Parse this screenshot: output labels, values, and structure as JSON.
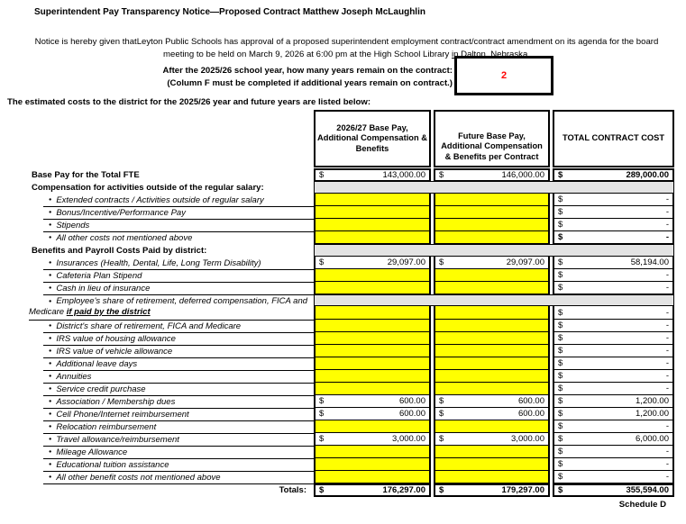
{
  "title": "Superintendent Pay Transparency Notice—Proposed Contract Matthew Joseph McLaughlin",
  "notice": {
    "line1": "Notice is hereby given thatLeyton Public Schools has approval of a proposed superintendent employment contract/contract amendment on its agenda for the  board",
    "line2_prefix": "meeting to be held on March 9, 2026 at 6:00 pm at the High School Library ",
    "line2_underlined": "in Dalton, Nebraska."
  },
  "question": {
    "line1": "After the 2025/26 school year, how many years remain on the contract:",
    "line2": "(Column F must be completed if additional years remain on contract.)",
    "answer": "2",
    "answer_color": "#ff0000"
  },
  "intro": "The estimated costs to the district for the 2025/26 year and future years are listed below:",
  "table": {
    "headers": [
      "2026/27 Base Pay, Additional Compensation & Benefits",
      "Future Base Pay, Additional Compensation & Benefits per Contract",
      "TOTAL CONTRACT COST"
    ],
    "rows": [
      {
        "label": "Base Pay for the Total FTE",
        "style": "section",
        "first": true,
        "b": "143,000.00",
        "c": "146,000.00",
        "d": "289,000.00",
        "d_bold": true
      },
      {
        "label": "Compensation for activities outside of the regular salary:",
        "style": "section",
        "span": "gray"
      },
      {
        "label": "Extended contracts / Activities outside of regular salary",
        "style": "bullet",
        "b": "yellow",
        "c": "yellow",
        "d": "-"
      },
      {
        "label": "Bonus/Incentive/Performance Pay",
        "style": "bullet",
        "b": "yellow",
        "c": "yellow",
        "d": "-"
      },
      {
        "label": "Stipends",
        "style": "bullet",
        "b": "yellow",
        "c": "yellow",
        "d": "-"
      },
      {
        "label": "All other costs not mentioned above",
        "style": "bullet",
        "ul": false,
        "b": "yellow",
        "c": "yellow",
        "d": "-",
        "d_bold": true
      },
      {
        "label": "Benefits and Payroll Costs Paid by district:",
        "style": "section",
        "span": "gray"
      },
      {
        "label": "Insurances (Health, Dental, Life, Long Term Disability)",
        "style": "bullet",
        "b": "29,097.00",
        "c": "29,097.00",
        "d": "58,194.00"
      },
      {
        "label": "Cafeteria Plan Stipend",
        "style": "bullet",
        "b": "yellow",
        "c": "yellow",
        "d": "-"
      },
      {
        "label": "Cash in lieu of insurance",
        "style": "bullet",
        "b": "yellow",
        "c": "yellow",
        "d": "-"
      },
      {
        "style": "two_line",
        "label_line1": "Employee's share of retirement, deferred compensation, FICA and",
        "label_line2_prefix": "Medicare ",
        "label_line2_emphasis": "if paid by the district",
        "b": "yellow",
        "c": "yellow",
        "d": "-"
      },
      {
        "label": "District's share of retirement, FICA and Medicare",
        "style": "bullet",
        "b": "yellow",
        "c": "yellow",
        "d": "-"
      },
      {
        "label": "IRS value of housing allowance",
        "style": "bullet",
        "b": "yellow",
        "c": "yellow",
        "d": "-"
      },
      {
        "label": "IRS value of vehicle allowance",
        "style": "bullet",
        "b": "yellow",
        "c": "yellow",
        "d": "-"
      },
      {
        "label": "Additional leave days",
        "style": "bullet",
        "b": "yellow",
        "c": "yellow",
        "d": "-"
      },
      {
        "label": "Annuities",
        "style": "bullet",
        "b": "yellow",
        "c": "yellow",
        "d": "-"
      },
      {
        "label": "Service credit purchase",
        "style": "bullet",
        "b": "yellow",
        "c": "yellow",
        "d": "-"
      },
      {
        "label": "Association / Membership dues",
        "style": "bullet",
        "b": "600.00",
        "c": "600.00",
        "d": "1,200.00"
      },
      {
        "label": "Cell Phone/Internet reimbursement",
        "style": "bullet",
        "b": "600.00",
        "c": "600.00",
        "d": "1,200.00"
      },
      {
        "label": "Relocation reimbursement",
        "style": "bullet",
        "b": "yellow",
        "c": "yellow",
        "d": "-"
      },
      {
        "label": "Travel allowance/reimbursement",
        "style": "bullet",
        "b": "3,000.00",
        "c": "3,000.00",
        "d": "6,000.00"
      },
      {
        "label": "Mileage Allowance",
        "style": "bullet",
        "b": "yellow",
        "c": "yellow",
        "d": "-"
      },
      {
        "label": "Educational tuition assistance",
        "style": "bullet",
        "b": "yellow",
        "c": "yellow",
        "d": "-"
      },
      {
        "label": "All other benefit costs not mentioned above",
        "style": "bullet",
        "b": "yellow",
        "c": "yellow",
        "d": "-"
      },
      {
        "label": "Totals:",
        "style": "totals",
        "b": "176,297.00",
        "c": "179,297.00",
        "d": "355,594.00"
      }
    ]
  },
  "footer": "Schedule D",
  "colors": {
    "input_yellow": "#ffff00",
    "section_gray": "#e3e3e3",
    "answer_red": "#ff0000",
    "border_black": "#000000"
  }
}
